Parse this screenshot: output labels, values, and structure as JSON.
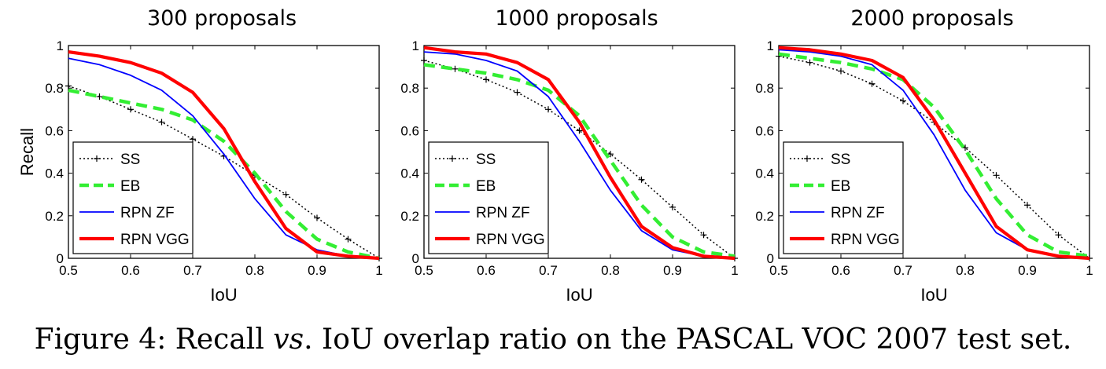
{
  "chart_data": [
    {
      "type": "line",
      "title": "300 proposals",
      "xlabel": "IoU",
      "ylabel": "Recall",
      "xlim": [
        0.5,
        1
      ],
      "ylim": [
        0,
        1
      ],
      "xticks": [
        "0.5",
        "0.6",
        "0.7",
        "0.8",
        "0.9",
        "1"
      ],
      "yticks": [
        "0",
        "0.2",
        "0.4",
        "0.6",
        "0.8",
        "1"
      ],
      "legend_position": "bottom-left",
      "x": [
        0.5,
        0.55,
        0.6,
        0.65,
        0.7,
        0.75,
        0.8,
        0.85,
        0.9,
        0.95,
        1.0
      ],
      "series": [
        {
          "name": "SS",
          "color": "#000000",
          "style": "dotted-plus",
          "values": [
            0.81,
            0.76,
            0.7,
            0.64,
            0.56,
            0.48,
            0.39,
            0.3,
            0.19,
            0.09,
            0.0
          ]
        },
        {
          "name": "EB",
          "color": "#33ee33",
          "style": "dashed",
          "values": [
            0.79,
            0.76,
            0.73,
            0.7,
            0.65,
            0.55,
            0.4,
            0.22,
            0.09,
            0.03,
            0.0
          ]
        },
        {
          "name": "RPN ZF",
          "color": "#0000ff",
          "style": "solid-thin",
          "values": [
            0.94,
            0.91,
            0.86,
            0.79,
            0.67,
            0.49,
            0.28,
            0.11,
            0.04,
            0.01,
            0.0
          ]
        },
        {
          "name": "RPN VGG",
          "color": "#ff0000",
          "style": "solid-thick",
          "values": [
            0.97,
            0.95,
            0.92,
            0.87,
            0.78,
            0.61,
            0.36,
            0.14,
            0.03,
            0.01,
            0.0
          ]
        }
      ]
    },
    {
      "type": "line",
      "title": "1000 proposals",
      "xlabel": "IoU",
      "ylabel": "",
      "xlim": [
        0.5,
        1
      ],
      "ylim": [
        0,
        1
      ],
      "xticks": [
        "0.5",
        "0.6",
        "0.7",
        "0.8",
        "0.9",
        "1"
      ],
      "yticks": [
        "0",
        "0.2",
        "0.4",
        "0.6",
        "0.8",
        "1"
      ],
      "legend_position": "bottom-left",
      "x": [
        0.5,
        0.55,
        0.6,
        0.65,
        0.7,
        0.75,
        0.8,
        0.85,
        0.9,
        0.95,
        1.0
      ],
      "series": [
        {
          "name": "SS",
          "color": "#000000",
          "style": "dotted-plus",
          "values": [
            0.93,
            0.89,
            0.84,
            0.78,
            0.7,
            0.6,
            0.49,
            0.37,
            0.24,
            0.11,
            0.0
          ]
        },
        {
          "name": "EB",
          "color": "#33ee33",
          "style": "dashed",
          "values": [
            0.91,
            0.89,
            0.87,
            0.84,
            0.79,
            0.67,
            0.46,
            0.25,
            0.1,
            0.03,
            0.01
          ]
        },
        {
          "name": "RPN ZF",
          "color": "#0000ff",
          "style": "solid-thin",
          "values": [
            0.97,
            0.96,
            0.93,
            0.88,
            0.76,
            0.55,
            0.32,
            0.13,
            0.04,
            0.01,
            0.0
          ]
        },
        {
          "name": "RPN VGG",
          "color": "#ff0000",
          "style": "solid-thick",
          "values": [
            0.99,
            0.97,
            0.96,
            0.92,
            0.84,
            0.64,
            0.38,
            0.15,
            0.05,
            0.01,
            0.0
          ]
        }
      ]
    },
    {
      "type": "line",
      "title": "2000 proposals",
      "xlabel": "IoU",
      "ylabel": "",
      "xlim": [
        0.5,
        1
      ],
      "ylim": [
        0,
        1
      ],
      "xticks": [
        "0.5",
        "0.6",
        "0.7",
        "0.8",
        "0.9",
        "1"
      ],
      "yticks": [
        "0",
        "0.2",
        "0.4",
        "0.6",
        "0.8",
        "1"
      ],
      "legend_position": "bottom-left",
      "x": [
        0.5,
        0.55,
        0.6,
        0.65,
        0.7,
        0.75,
        0.8,
        0.85,
        0.9,
        0.95,
        1.0
      ],
      "series": [
        {
          "name": "SS",
          "color": "#000000",
          "style": "dotted-plus",
          "values": [
            0.95,
            0.92,
            0.88,
            0.82,
            0.74,
            0.64,
            0.52,
            0.39,
            0.25,
            0.11,
            0.0
          ]
        },
        {
          "name": "EB",
          "color": "#33ee33",
          "style": "dashed",
          "values": [
            0.96,
            0.94,
            0.92,
            0.89,
            0.84,
            0.71,
            0.51,
            0.28,
            0.11,
            0.03,
            0.01
          ]
        },
        {
          "name": "RPN ZF",
          "color": "#0000ff",
          "style": "solid-thin",
          "values": [
            0.98,
            0.97,
            0.95,
            0.91,
            0.79,
            0.58,
            0.32,
            0.12,
            0.04,
            0.01,
            0.0
          ]
        },
        {
          "name": "RPN VGG",
          "color": "#ff0000",
          "style": "solid-thick",
          "values": [
            0.99,
            0.98,
            0.96,
            0.93,
            0.85,
            0.65,
            0.4,
            0.15,
            0.04,
            0.01,
            0.0
          ]
        }
      ]
    }
  ],
  "caption": {
    "prefix": "Figure 4: Recall ",
    "emph": "vs",
    "suffix": ". IoU overlap ratio on the PASCAL VOC 2007 test set."
  }
}
